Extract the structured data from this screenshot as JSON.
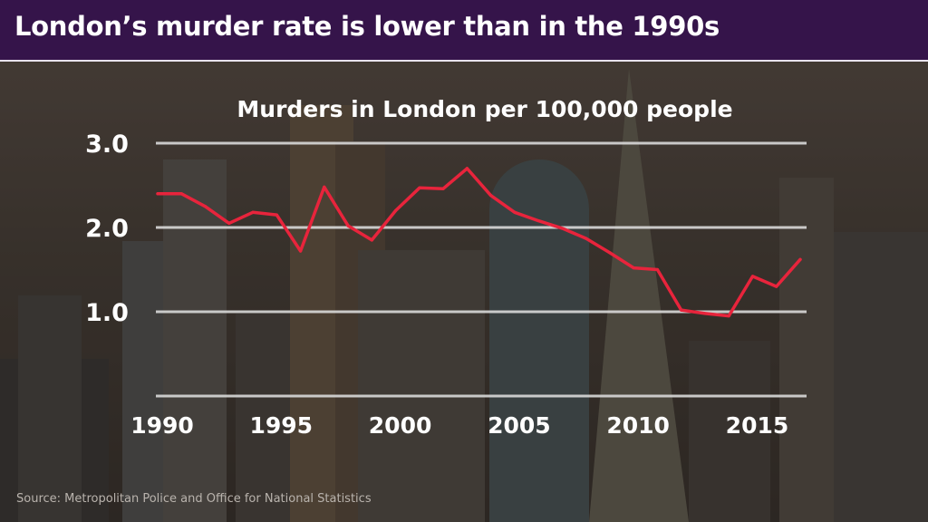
{
  "header": {
    "title": "London’s murder rate is lower than in the 1990s"
  },
  "source": "Source: Metropolitan Police and Office for National Statistics",
  "colors": {
    "header_bg": "#35144a",
    "line": "#e8243c",
    "gridline": "#d9d9d9",
    "text": "#ffffff"
  },
  "chart_data": {
    "type": "line",
    "title": "Murders in London per 100,000 people",
    "xlabel": "",
    "ylabel": "",
    "xlim": [
      1990,
      2017
    ],
    "ylim": [
      0,
      3.0
    ],
    "x_ticks": [
      1990,
      1995,
      2000,
      2005,
      2010,
      2015
    ],
    "y_ticks": [
      {
        "value": 3.0,
        "label": "3.0"
      },
      {
        "value": 2.0,
        "label": "2.0"
      },
      {
        "value": 1.0,
        "label": "1.0"
      }
    ],
    "grid": true,
    "series": [
      {
        "x": [
          1990,
          1991,
          1992,
          1993,
          1994,
          1995,
          1996,
          1997,
          1998,
          1999,
          2000,
          2001,
          2002,
          2003,
          2004,
          2005,
          2006,
          2007,
          2008,
          2009,
          2010,
          2011,
          2012,
          2013,
          2014,
          2015,
          2016,
          2017
        ],
        "y": [
          2.4,
          2.4,
          2.25,
          2.05,
          2.18,
          2.15,
          1.72,
          2.48,
          2.02,
          1.85,
          2.2,
          2.47,
          2.46,
          2.7,
          2.38,
          2.18,
          2.08,
          1.99,
          1.87,
          1.7,
          1.52,
          1.5,
          1.02,
          0.98,
          0.95,
          1.42,
          1.3,
          1.62
        ]
      }
    ]
  }
}
